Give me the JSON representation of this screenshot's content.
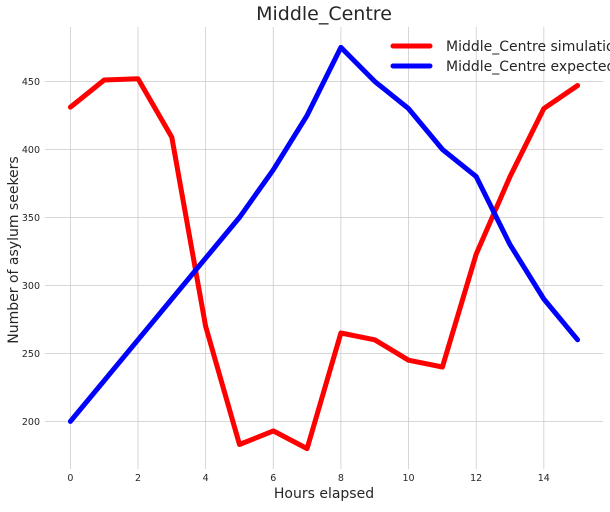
{
  "chart_data": {
    "type": "line",
    "title": "Middle_Centre",
    "xlabel": "Hours elapsed",
    "ylabel": "Number of asylum seekers",
    "xlim": [
      -0.75,
      15.75
    ],
    "ylim": [
      165,
      490
    ],
    "xticks": [
      0,
      2,
      4,
      6,
      8,
      10,
      12,
      14
    ],
    "yticks": [
      200,
      250,
      300,
      350,
      400,
      450
    ],
    "grid": true,
    "legend_position": "top-right",
    "x": [
      0,
      1,
      2,
      3,
      4,
      5,
      6,
      7,
      8,
      9,
      10,
      11,
      12,
      13,
      14,
      15
    ],
    "series": [
      {
        "name": "Middle_Centre simulation",
        "color": "#ff0000",
        "values": [
          431,
          451,
          452,
          409,
          270,
          183,
          193,
          180,
          265,
          260,
          245,
          240,
          323,
          380,
          430,
          447
        ]
      },
      {
        "name": "Middle_Centre expected",
        "color": "#0000ff",
        "values": [
          200,
          230,
          260,
          290,
          320,
          350,
          385,
          425,
          475,
          450,
          430,
          400,
          380,
          330,
          290,
          260
        ]
      }
    ]
  }
}
